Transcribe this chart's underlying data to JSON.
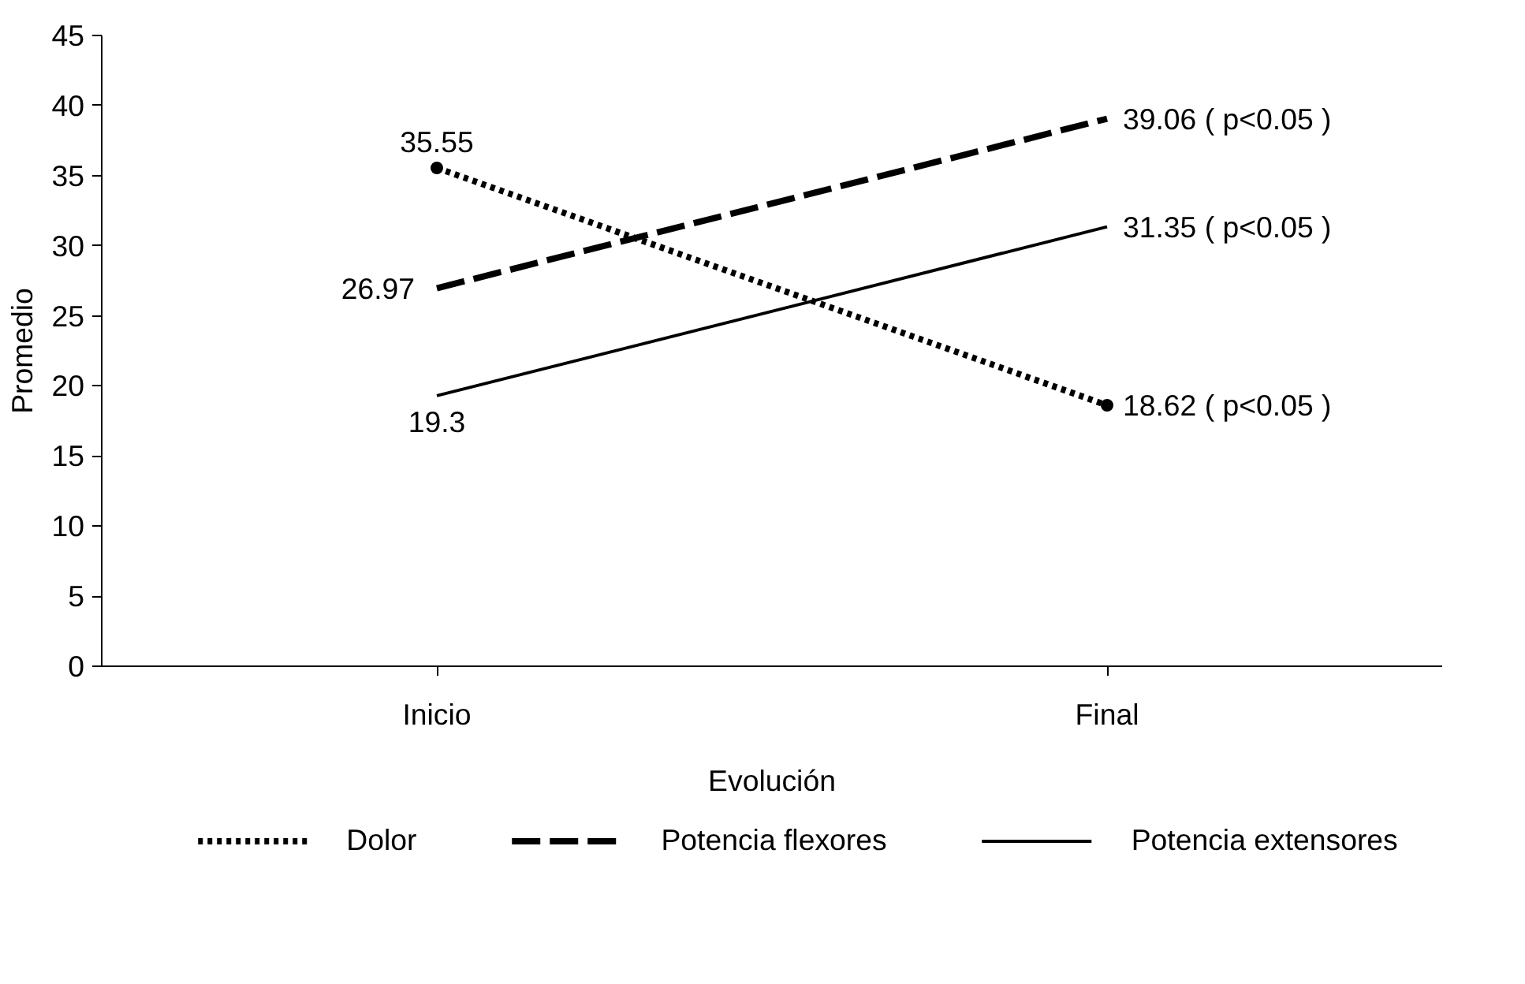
{
  "chart_data": {
    "type": "line",
    "xlabel": "Evolución",
    "ylabel": "Promedio",
    "categories": [
      "Inicio",
      "Final"
    ],
    "series": [
      {
        "name": "Dolor",
        "color": "#000000",
        "values": [
          35.55,
          18.62
        ],
        "line_style": "dotted",
        "marker": "circle",
        "value_labels": [
          "35.55",
          "18.62 ( p<0.05 )"
        ]
      },
      {
        "name": "Potencia flexores",
        "color": "#000000",
        "values": [
          26.97,
          39.06
        ],
        "line_style": "dashed",
        "marker": "none",
        "value_labels": [
          "26.97",
          "39.06 ( p<0.05 )"
        ]
      },
      {
        "name": "Potencia extensores",
        "color": "#000000",
        "values": [
          19.3,
          31.35
        ],
        "line_style": "solid",
        "marker": "none",
        "value_labels": [
          "19.3",
          "31.35 ( p<0.05 )"
        ]
      }
    ],
    "ylim": [
      0,
      45
    ],
    "yticks": [
      0,
      5,
      10,
      15,
      20,
      25,
      30,
      35,
      40,
      45
    ],
    "grid": false,
    "legend": "bottom"
  }
}
